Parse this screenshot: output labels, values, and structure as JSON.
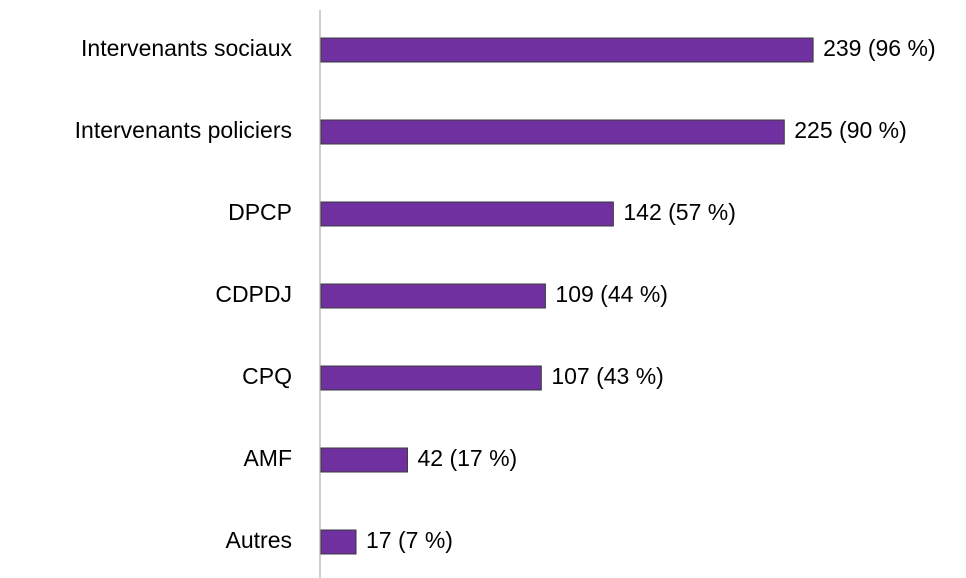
{
  "chart_data": {
    "type": "bar",
    "orientation": "horizontal",
    "categories": [
      "Intervenants sociaux",
      "Intervenants policiers",
      "DPCP",
      "CDPDJ",
      "CPQ",
      "AMF",
      "Autres"
    ],
    "values": [
      239,
      225,
      142,
      109,
      107,
      42,
      17
    ],
    "value_labels": [
      "239 (96 %)",
      "225 (90 %)",
      "142 (57 %)",
      "109 (44 %)",
      "107 (43 %)",
      "42 (17 %)",
      "17 (7 %)"
    ],
    "color": "#7030a0"
  }
}
